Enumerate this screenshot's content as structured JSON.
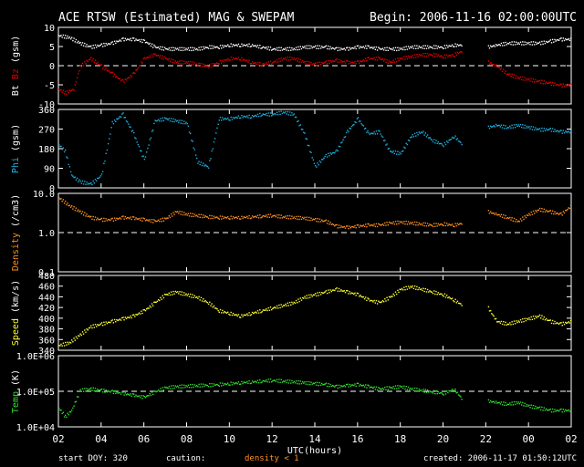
{
  "header": {
    "title": "ACE RTSW (Estimated) MAG & SWEPAM",
    "begin": "Begin: 2006-11-16 02:00:00UTC"
  },
  "footer": {
    "start_doy": "start DOY: 320",
    "caution": "caution:",
    "density_note": "density < 1",
    "created": "created: 2006-11-17 01:50:12UTC"
  },
  "colors": {
    "bt": "#ffffff",
    "bz": "#e00000",
    "phi": "#20b0e0",
    "density": "#ff9020",
    "speed": "#ffff30",
    "temp": "#30e030",
    "axis": "#ffffff",
    "caution": "#ff9020"
  },
  "chart_data": {
    "type": "scatter",
    "xlabel": "UTC(hours)",
    "x_ticks": [
      "02",
      "04",
      "06",
      "08",
      "10",
      "12",
      "14",
      "16",
      "18",
      "20",
      "22",
      "00",
      "02"
    ],
    "xlim_hours": [
      0,
      24
    ],
    "data_gaps_hours": [
      [
        19.0,
        20.0
      ]
    ],
    "panels": [
      {
        "name": "mag",
        "ylabel_parts": [
          "Bt",
          "Bz",
          "(gsm)"
        ],
        "ylim": [
          -10,
          10
        ],
        "yticks": [
          "10",
          "5",
          "0",
          "-5",
          "-10"
        ],
        "ytick_values": [
          10,
          5,
          0,
          -5,
          -10
        ],
        "ref_line": 0,
        "series": [
          {
            "name": "Bt",
            "color": "bt",
            "x": [
              0.0,
              0.5,
              1.0,
              1.5,
              2.0,
              2.5,
              3.0,
              3.5,
              4.0,
              4.5,
              5.0,
              5.5,
              6.0,
              6.5,
              7.0,
              7.5,
              8.0,
              8.5,
              9.0,
              9.5,
              10.0,
              10.5,
              11.0,
              11.5,
              12.0,
              12.5,
              13.0,
              13.5,
              14.0,
              14.5,
              15.0,
              15.5,
              16.0,
              16.5,
              17.0,
              17.5,
              18.0,
              18.5,
              18.9,
              20.1,
              20.5,
              21.0,
              21.5,
              22.0,
              22.5,
              23.0,
              23.5,
              24.0
            ],
            "y": [
              8,
              7.5,
              6,
              5,
              5.5,
              6,
              7,
              7,
              6.5,
              5,
              4.5,
              4.5,
              4.5,
              4.5,
              5,
              5,
              5.5,
              5.5,
              5.5,
              5,
              4.5,
              4.5,
              4.5,
              5,
              5,
              5,
              4.5,
              4.5,
              5,
              5,
              4.5,
              4.5,
              4.5,
              5,
              5,
              5,
              5,
              5.5,
              5.5,
              5,
              5.5,
              6,
              6,
              6,
              6,
              6.5,
              7,
              7
            ]
          },
          {
            "name": "Bz",
            "color": "bz",
            "x": [
              0.0,
              0.3,
              0.7,
              1.0,
              1.5,
              2.0,
              2.5,
              3.0,
              3.5,
              4.0,
              4.5,
              5.0,
              5.5,
              6.0,
              6.5,
              7.0,
              7.5,
              8.0,
              8.5,
              9.0,
              9.5,
              10.0,
              10.5,
              11.0,
              11.5,
              12.0,
              12.5,
              13.0,
              13.5,
              14.0,
              14.5,
              15.0,
              15.5,
              16.0,
              16.5,
              17.0,
              17.5,
              18.0,
              18.5,
              18.9,
              20.1,
              20.5,
              21.0,
              21.5,
              22.0,
              22.5,
              23.0,
              23.5,
              24.0
            ],
            "y": [
              -6,
              -7,
              -6,
              0,
              2,
              0,
              -2,
              -4,
              -2,
              2,
              3,
              2,
              1,
              1,
              0.5,
              0,
              1,
              2,
              2,
              1,
              0.5,
              1,
              2,
              2,
              1,
              0.5,
              1,
              1.5,
              1,
              1,
              2,
              2,
              1,
              2,
              2.5,
              3,
              3,
              2.5,
              3,
              4,
              1,
              0,
              -2,
              -3,
              -3.5,
              -4,
              -4.5,
              -5,
              -5
            ]
          }
        ]
      },
      {
        "name": "phi",
        "ylabel_parts": [
          "Phi",
          "(gsm)"
        ],
        "ylim": [
          0,
          360
        ],
        "yticks": [
          "360",
          "270",
          "180",
          "90",
          "0"
        ],
        "ytick_values": [
          360,
          270,
          180,
          90,
          0
        ],
        "series": [
          {
            "name": "Phi",
            "color": "phi",
            "x": [
              0.0,
              0.3,
              0.6,
              1.0,
              1.5,
              2.0,
              2.5,
              3.0,
              3.5,
              4.0,
              4.5,
              5.0,
              5.5,
              6.0,
              6.5,
              7.0,
              7.5,
              8.0,
              8.5,
              9.0,
              9.5,
              10.0,
              10.5,
              11.0,
              11.5,
              12.0,
              12.5,
              13.0,
              13.5,
              14.0,
              14.5,
              15.0,
              15.5,
              16.0,
              16.5,
              17.0,
              17.5,
              18.0,
              18.5,
              18.9,
              20.1,
              20.5,
              21.0,
              21.5,
              22.0,
              22.5,
              23.0,
              23.5,
              24.0
            ],
            "y": [
              200,
              170,
              60,
              30,
              20,
              60,
              300,
              340,
              250,
              130,
              310,
              320,
              310,
              300,
              120,
              100,
              320,
              320,
              330,
              330,
              340,
              340,
              350,
              340,
              250,
              100,
              150,
              170,
              260,
              320,
              250,
              260,
              170,
              160,
              240,
              260,
              220,
              200,
              240,
              200,
              280,
              290,
              280,
              290,
              280,
              270,
              270,
              260,
              260
            ]
          }
        ]
      },
      {
        "name": "density",
        "ylabel_parts": [
          "Density",
          "(/cm3)"
        ],
        "ylim_log": [
          0.1,
          10
        ],
        "yticks": [
          "10.0",
          "1.0",
          "0.1"
        ],
        "ytick_values": [
          10,
          1,
          0.1
        ],
        "ref_line": 1,
        "series": [
          {
            "name": "Density",
            "color": "density",
            "x": [
              0.0,
              0.5,
              1.0,
              1.5,
              2.0,
              2.5,
              3.0,
              3.5,
              4.0,
              4.5,
              5.0,
              5.5,
              6.0,
              6.5,
              7.0,
              7.5,
              8.0,
              8.5,
              9.0,
              9.5,
              10.0,
              10.5,
              11.0,
              11.5,
              12.0,
              12.5,
              13.0,
              13.5,
              14.0,
              14.5,
              15.0,
              15.5,
              16.0,
              16.5,
              17.0,
              17.5,
              18.0,
              18.5,
              18.9,
              20.1,
              20.5,
              21.0,
              21.5,
              22.0,
              22.5,
              23.0,
              23.5,
              24.0
            ],
            "y": [
              8,
              5,
              3.5,
              2.5,
              2.2,
              2.2,
              2.5,
              2.4,
              2.2,
              2,
              2.3,
              3.5,
              3,
              2.8,
              2.6,
              2.5,
              2.5,
              2.5,
              2.6,
              2.7,
              2.8,
              2.6,
              2.5,
              2.4,
              2.2,
              2,
              1.5,
              1.4,
              1.5,
              1.6,
              1.6,
              1.8,
              1.9,
              1.8,
              1.7,
              1.6,
              1.7,
              1.6,
              1.8,
              3.5,
              3,
              2.5,
              2,
              3,
              4,
              3.5,
              3,
              5
            ]
          }
        ]
      },
      {
        "name": "speed",
        "ylabel_parts": [
          "Speed",
          "(km/s)"
        ],
        "ylim": [
          340,
          480
        ],
        "yticks": [
          "480",
          "460",
          "440",
          "420",
          "400",
          "380",
          "360",
          "340"
        ],
        "ytick_values": [
          480,
          460,
          440,
          420,
          400,
          380,
          360,
          340
        ],
        "series": [
          {
            "name": "Speed",
            "color": "speed",
            "x": [
              0.0,
              0.5,
              1.0,
              1.5,
              2.0,
              2.5,
              3.0,
              3.5,
              4.0,
              4.5,
              5.0,
              5.5,
              6.0,
              6.5,
              7.0,
              7.5,
              8.0,
              8.5,
              9.0,
              9.5,
              10.0,
              10.5,
              11.0,
              11.5,
              12.0,
              12.5,
              13.0,
              13.5,
              14.0,
              14.5,
              15.0,
              15.5,
              16.0,
              16.5,
              17.0,
              17.5,
              18.0,
              18.5,
              18.9,
              20.1,
              20.5,
              21.0,
              21.5,
              22.0,
              22.5,
              23.0,
              23.5,
              24.0
            ],
            "y": [
              350,
              355,
              370,
              385,
              390,
              395,
              400,
              405,
              415,
              430,
              445,
              450,
              445,
              440,
              430,
              415,
              410,
              405,
              410,
              415,
              420,
              425,
              430,
              440,
              445,
              450,
              455,
              450,
              445,
              435,
              430,
              440,
              455,
              460,
              455,
              450,
              445,
              435,
              425,
              420,
              395,
              390,
              395,
              400,
              405,
              395,
              390,
              395
            ]
          }
        ]
      },
      {
        "name": "temp",
        "ylabel_parts": [
          "Temp",
          "(K)"
        ],
        "ylim_log": [
          10000,
          1000000
        ],
        "yticks": [
          "1.0E+06",
          "1.0E+05",
          "1.0E+04"
        ],
        "ytick_values": [
          1000000,
          100000,
          10000
        ],
        "ref_line": 100000,
        "series": [
          {
            "name": "Temp",
            "color": "temp",
            "x": [
              0.0,
              0.3,
              0.6,
              1.0,
              1.5,
              2.0,
              2.5,
              3.0,
              3.5,
              4.0,
              4.5,
              5.0,
              5.5,
              6.0,
              6.5,
              7.0,
              7.5,
              8.0,
              8.5,
              9.0,
              9.5,
              10.0,
              10.5,
              11.0,
              11.5,
              12.0,
              12.5,
              13.0,
              13.5,
              14.0,
              14.5,
              15.0,
              15.5,
              16.0,
              16.5,
              17.0,
              17.5,
              18.0,
              18.5,
              18.9,
              20.1,
              20.5,
              21.0,
              21.5,
              22.0,
              22.5,
              23.0,
              23.5,
              24.0
            ],
            "y": [
              35000,
              20000,
              30000,
              110000,
              120000,
              110000,
              100000,
              90000,
              80000,
              70000,
              100000,
              130000,
              140000,
              145000,
              150000,
              155000,
              160000,
              170000,
              180000,
              190000,
              200000,
              210000,
              200000,
              190000,
              180000,
              170000,
              160000,
              140000,
              150000,
              160000,
              140000,
              120000,
              130000,
              140000,
              120000,
              110000,
              100000,
              90000,
              120000,
              60000,
              55000,
              50000,
              45000,
              50000,
              40000,
              35000,
              30000,
              30000,
              30000
            ]
          }
        ]
      }
    ]
  }
}
